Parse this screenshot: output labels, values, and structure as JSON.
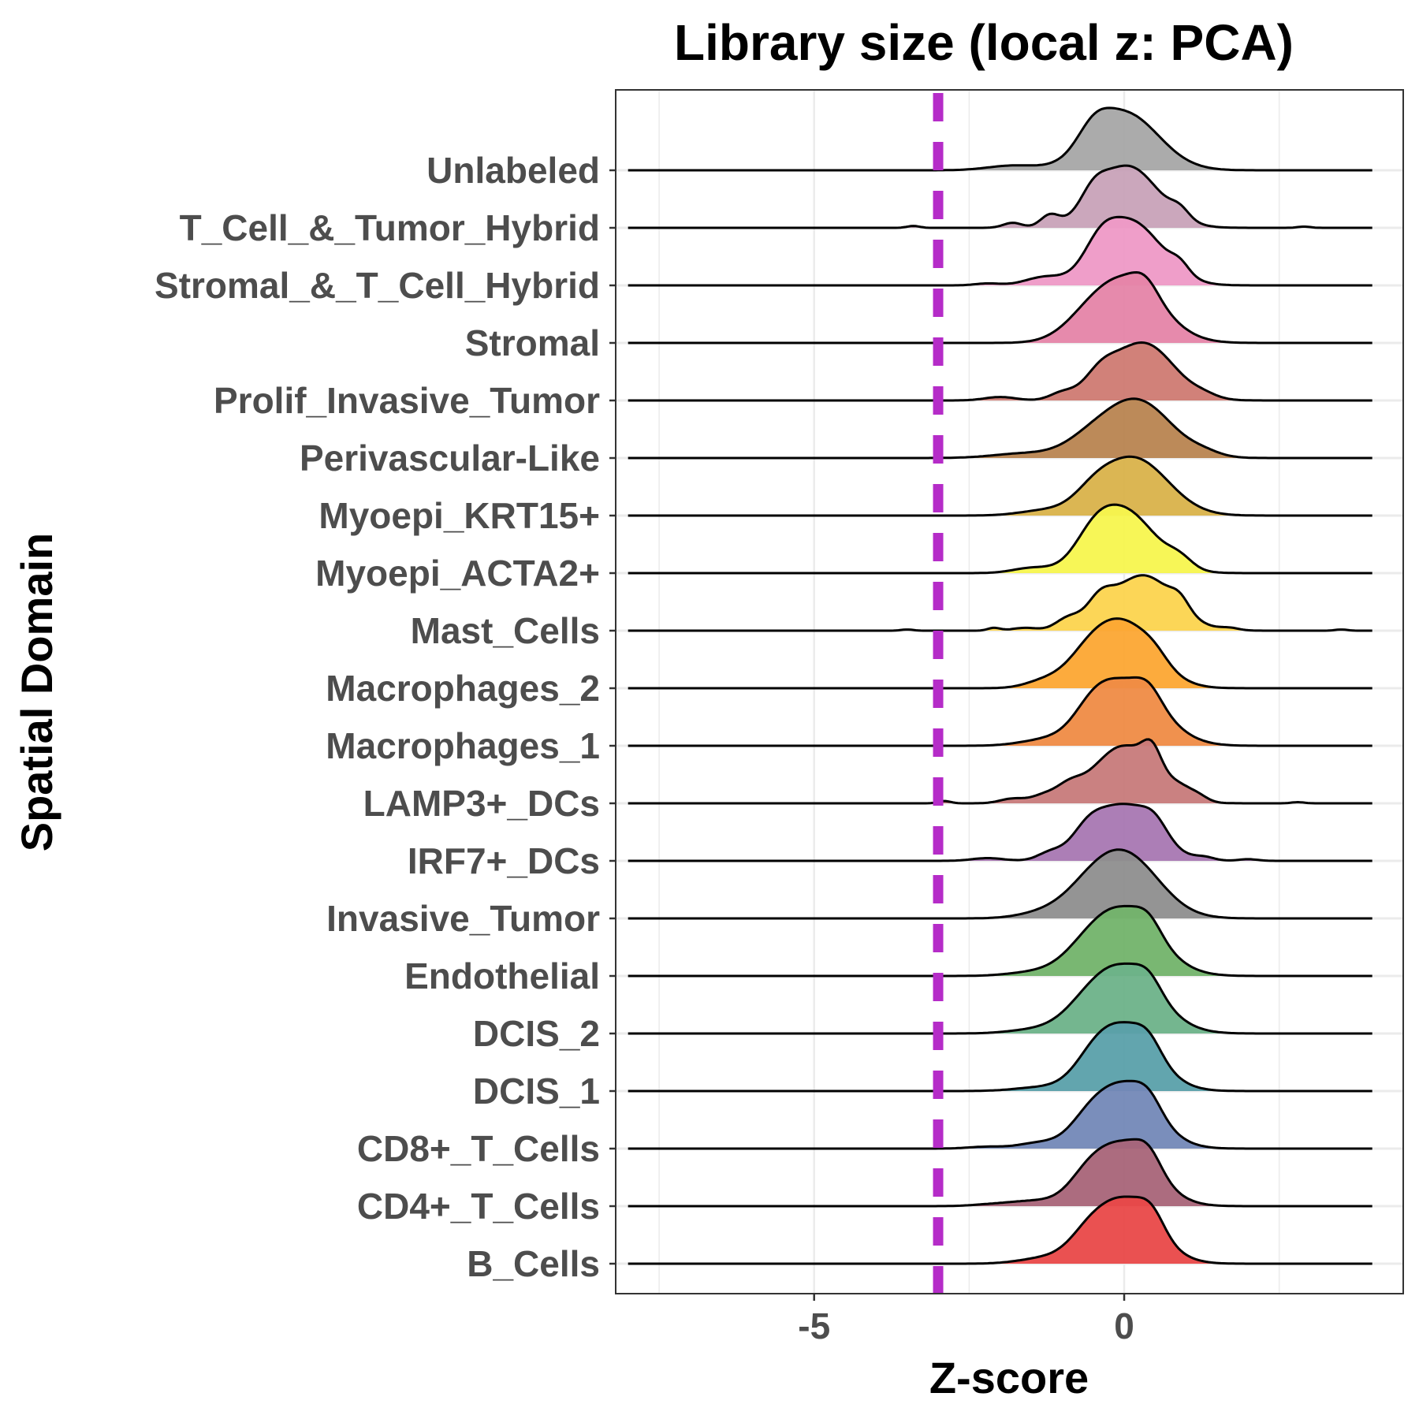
{
  "chart_data": {
    "type": "ridgeline",
    "title": "Library size (local z: PCA)",
    "xlabel": "Z-score",
    "ylabel": "Spatial Domain",
    "xlim": [
      -8.2,
      4.5
    ],
    "x_ticks": [
      {
        "value": -5,
        "label": "-5"
      },
      {
        "value": 0,
        "label": "0"
      }
    ],
    "grid": true,
    "threshold": {
      "value": -3,
      "color": "#b52cc8",
      "style": "dashed"
    },
    "density_range": [
      -8,
      4
    ],
    "series": [
      {
        "name": "Unlabeled",
        "color": "#a6a6a6",
        "mode": 0.0,
        "width": 0.55,
        "height": 1.35,
        "bumps": [
          [
            -0.5,
            0.25,
            0.3
          ],
          [
            -1.8,
            0.4,
            0.08
          ]
        ]
      },
      {
        "name": "T_Cell_&_Tumor_Hybrid",
        "color": "#c8a2b8",
        "mode": 0.05,
        "width": 0.5,
        "height": 1.45,
        "bumps": [
          [
            -0.5,
            0.2,
            0.25
          ],
          [
            -1.2,
            0.15,
            0.18
          ],
          [
            -1.8,
            0.15,
            0.08
          ],
          [
            0.9,
            0.15,
            0.15
          ],
          [
            -3.4,
            0.1,
            0.03
          ],
          [
            2.9,
            0.1,
            0.02
          ]
        ]
      },
      {
        "name": "Stromal_&_T_Cell_Hybrid",
        "color": "#ee99c6",
        "mode": 0.1,
        "width": 0.5,
        "height": 1.5,
        "bumps": [
          [
            -0.4,
            0.25,
            0.3
          ],
          [
            0.9,
            0.15,
            0.15
          ],
          [
            -1.3,
            0.3,
            0.12
          ],
          [
            -2.2,
            0.2,
            0.03
          ]
        ]
      },
      {
        "name": "Stromal",
        "color": "#e584a8",
        "mode": 0.05,
        "width": 0.55,
        "height": 1.45,
        "bumps": [
          [
            0.35,
            0.2,
            0.2
          ],
          [
            -0.6,
            0.4,
            0.2
          ]
        ]
      },
      {
        "name": "Prolif_Invasive_Tumor",
        "color": "#cf7a72",
        "mode": 0.3,
        "width": 0.5,
        "height": 1.35,
        "bumps": [
          [
            -0.4,
            0.25,
            0.3
          ],
          [
            -1.0,
            0.2,
            0.12
          ],
          [
            -2.0,
            0.25,
            0.06
          ],
          [
            1.3,
            0.2,
            0.05
          ]
        ]
      },
      {
        "name": "Perivascular-Like",
        "color": "#b88450",
        "mode": 0.2,
        "width": 0.55,
        "height": 1.35,
        "bumps": [
          [
            -0.6,
            0.4,
            0.2
          ],
          [
            -1.6,
            0.5,
            0.08
          ],
          [
            1.3,
            0.25,
            0.06
          ]
        ]
      },
      {
        "name": "Myoepi_KRT15+",
        "color": "#d9b24a",
        "mode": 0.15,
        "width": 0.55,
        "height": 1.35,
        "bumps": [
          [
            -0.5,
            0.3,
            0.2
          ],
          [
            -1.3,
            0.4,
            0.08
          ]
        ]
      },
      {
        "name": "Myoepi_ACTA2+",
        "color": "#f7f54e",
        "mode": 0.0,
        "width": 0.5,
        "height": 1.45,
        "bumps": [
          [
            -0.5,
            0.3,
            0.3
          ],
          [
            0.9,
            0.2,
            0.15
          ],
          [
            -1.5,
            0.3,
            0.08
          ]
        ]
      },
      {
        "name": "Mast_Cells",
        "color": "#fcd44e",
        "mode": 0.3,
        "width": 0.5,
        "height": 1.3,
        "bumps": [
          [
            -0.4,
            0.2,
            0.35
          ],
          [
            -0.9,
            0.2,
            0.2
          ],
          [
            0.9,
            0.15,
            0.2
          ],
          [
            -1.6,
            0.2,
            0.05
          ],
          [
            -2.1,
            0.1,
            0.05
          ],
          [
            1.7,
            0.15,
            0.04
          ],
          [
            -3.5,
            0.1,
            0.02
          ],
          [
            3.5,
            0.1,
            0.02
          ]
        ]
      },
      {
        "name": "Macrophages_2",
        "color": "#fca733",
        "mode": 0.0,
        "width": 0.5,
        "height": 1.5,
        "bumps": [
          [
            -0.6,
            0.35,
            0.3
          ],
          [
            0.5,
            0.2,
            0.1
          ],
          [
            -1.3,
            0.3,
            0.1
          ]
        ]
      },
      {
        "name": "Macrophages_1",
        "color": "#ef8b45",
        "mode": 0.05,
        "width": 0.55,
        "height": 1.45,
        "bumps": [
          [
            -0.5,
            0.3,
            0.3
          ],
          [
            0.4,
            0.2,
            0.2
          ],
          [
            -1.3,
            0.4,
            0.08
          ]
        ]
      },
      {
        "name": "LAMP3+_DCs",
        "color": "#c77a7a",
        "mode": 0.0,
        "width": 0.5,
        "height": 1.35,
        "bumps": [
          [
            0.45,
            0.15,
            0.4
          ],
          [
            -0.9,
            0.2,
            0.2
          ],
          [
            -1.3,
            0.2,
            0.12
          ],
          [
            0.9,
            0.2,
            0.15
          ],
          [
            1.2,
            0.15,
            0.08
          ],
          [
            -1.8,
            0.2,
            0.08
          ],
          [
            -2.9,
            0.1,
            0.04
          ],
          [
            2.8,
            0.1,
            0.02
          ]
        ]
      },
      {
        "name": "IRF7+_DCs",
        "color": "#a877b2",
        "mode": 0.0,
        "width": 0.5,
        "height": 1.3,
        "bumps": [
          [
            0.5,
            0.2,
            0.25
          ],
          [
            -0.6,
            0.25,
            0.3
          ],
          [
            -1.2,
            0.2,
            0.12
          ],
          [
            -2.2,
            0.25,
            0.05
          ],
          [
            1.3,
            0.15,
            0.05
          ],
          [
            2.0,
            0.15,
            0.03
          ]
        ]
      },
      {
        "name": "Invasive_Tumor",
        "color": "#8e8e8e",
        "mode": 0.0,
        "width": 0.55,
        "height": 1.5,
        "bumps": [
          [
            -0.6,
            0.4,
            0.2
          ],
          [
            -1.3,
            0.4,
            0.08
          ]
        ]
      },
      {
        "name": "Endothelial",
        "color": "#72b36a",
        "mode": 0.0,
        "width": 0.55,
        "height": 1.5,
        "bumps": [
          [
            0.4,
            0.2,
            0.2
          ],
          [
            -0.6,
            0.4,
            0.2
          ],
          [
            -1.5,
            0.4,
            0.05
          ]
        ]
      },
      {
        "name": "DCIS_2",
        "color": "#6db289",
        "mode": 0.0,
        "width": 0.55,
        "height": 1.5,
        "bumps": [
          [
            0.4,
            0.2,
            0.2
          ],
          [
            -0.6,
            0.4,
            0.2
          ],
          [
            -1.5,
            0.4,
            0.05
          ]
        ]
      },
      {
        "name": "DCIS_1",
        "color": "#5aa0aa",
        "mode": 0.0,
        "width": 0.5,
        "height": 1.5,
        "bumps": [
          [
            0.4,
            0.2,
            0.2
          ],
          [
            -0.5,
            0.3,
            0.2
          ],
          [
            -1.4,
            0.4,
            0.05
          ]
        ]
      },
      {
        "name": "CD8+_T_Cells",
        "color": "#7388b7",
        "mode": 0.0,
        "width": 0.5,
        "height": 1.5,
        "bumps": [
          [
            0.4,
            0.2,
            0.2
          ],
          [
            -0.6,
            0.3,
            0.2
          ],
          [
            -1.4,
            0.3,
            0.08
          ],
          [
            -2.2,
            0.3,
            0.03
          ]
        ]
      },
      {
        "name": "CD4+_T_Cells",
        "color": "#a86478",
        "mode": 0.0,
        "width": 0.5,
        "height": 1.45,
        "bumps": [
          [
            0.4,
            0.2,
            0.25
          ],
          [
            -0.6,
            0.3,
            0.25
          ],
          [
            -1.5,
            0.4,
            0.08
          ],
          [
            -2.2,
            0.3,
            0.02
          ]
        ]
      },
      {
        "name": "B_Cells",
        "color": "#e94848",
        "mode": 0.0,
        "width": 0.5,
        "height": 1.5,
        "bumps": [
          [
            0.45,
            0.2,
            0.25
          ],
          [
            -0.6,
            0.3,
            0.2
          ],
          [
            -1.3,
            0.4,
            0.08
          ]
        ]
      }
    ]
  }
}
